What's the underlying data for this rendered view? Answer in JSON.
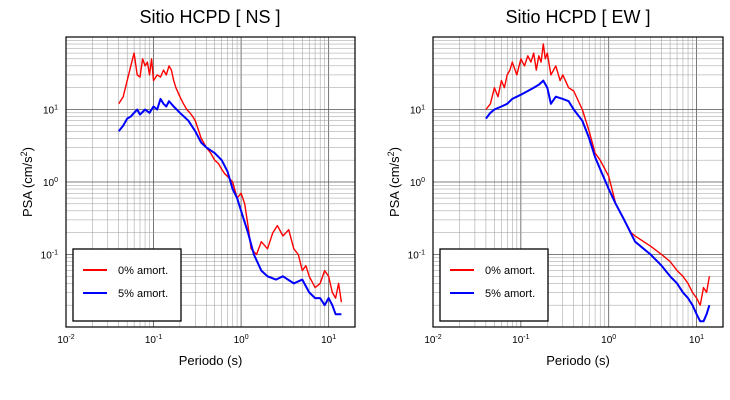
{
  "chart_data": [
    {
      "type": "line",
      "title": "Sitio HCPD [ NS ]",
      "xlabel": "Periodo (s)",
      "ylabel": "PSA (cm/s",
      "ylabel_sup": "2",
      "ylabel_suffix": ")",
      "x_scale": "log",
      "y_scale": "log",
      "xlim": [
        0.01,
        20
      ],
      "ylim": [
        0.01,
        100
      ],
      "grid": true,
      "legend_position": "bottom-left",
      "x_ticks": [
        {
          "base": "10",
          "exp": "-2"
        },
        {
          "base": "10",
          "exp": "-1"
        },
        {
          "base": "10",
          "exp": "0"
        },
        {
          "base": "10",
          "exp": "1"
        }
      ],
      "y_ticks": [
        {
          "base": "10",
          "exp": "-1"
        },
        {
          "base": "10",
          "exp": "0"
        },
        {
          "base": "10",
          "exp": "1"
        }
      ],
      "series": [
        {
          "name": "0% amort.",
          "color": "#ff0000",
          "x": [
            0.04,
            0.045,
            0.05,
            0.055,
            0.06,
            0.065,
            0.07,
            0.075,
            0.08,
            0.085,
            0.09,
            0.095,
            0.1,
            0.11,
            0.12,
            0.13,
            0.14,
            0.15,
            0.16,
            0.17,
            0.18,
            0.2,
            0.22,
            0.24,
            0.26,
            0.28,
            0.3,
            0.35,
            0.4,
            0.45,
            0.5,
            0.55,
            0.6,
            0.65,
            0.7,
            0.8,
            0.9,
            1.0,
            1.1,
            1.2,
            1.3,
            1.5,
            1.7,
            2.0,
            2.3,
            2.6,
            3.0,
            3.5,
            4.0,
            4.5,
            5.0,
            5.5,
            6.0,
            7.0,
            8.0,
            9.0,
            10.0,
            11.0,
            12.0,
            13.0,
            14.0
          ],
          "y": [
            12,
            15,
            25,
            40,
            60,
            30,
            28,
            50,
            40,
            45,
            30,
            50,
            25,
            30,
            28,
            35,
            30,
            40,
            35,
            25,
            20,
            15,
            12,
            10,
            9,
            8,
            7,
            4,
            3,
            2.5,
            2,
            1.8,
            1.5,
            1.3,
            1.2,
            1.0,
            0.6,
            0.7,
            0.5,
            0.25,
            0.12,
            0.1,
            0.15,
            0.12,
            0.2,
            0.25,
            0.18,
            0.22,
            0.12,
            0.1,
            0.06,
            0.07,
            0.05,
            0.035,
            0.04,
            0.06,
            0.05,
            0.03,
            0.025,
            0.04,
            0.022
          ]
        },
        {
          "name": "5% amort.",
          "color": "#0000ff",
          "x": [
            0.04,
            0.045,
            0.05,
            0.055,
            0.06,
            0.065,
            0.07,
            0.08,
            0.09,
            0.1,
            0.11,
            0.12,
            0.13,
            0.14,
            0.15,
            0.17,
            0.2,
            0.25,
            0.3,
            0.35,
            0.4,
            0.5,
            0.6,
            0.7,
            0.8,
            0.9,
            1.0,
            1.2,
            1.4,
            1.7,
            2.0,
            2.5,
            3.0,
            4.0,
            5.0,
            6.0,
            7.0,
            8.0,
            9.0,
            10.0,
            11.0,
            12.0,
            13.0,
            14.0
          ],
          "y": [
            5,
            6,
            7.5,
            8,
            9,
            10,
            8.5,
            10,
            9,
            11,
            10,
            14,
            12,
            11,
            13,
            11,
            9,
            7,
            5,
            3.5,
            3,
            2.5,
            2,
            1.4,
            0.8,
            0.6,
            0.4,
            0.2,
            0.1,
            0.06,
            0.05,
            0.045,
            0.05,
            0.04,
            0.045,
            0.03,
            0.025,
            0.025,
            0.02,
            0.025,
            0.02,
            0.015,
            0.015,
            0.015
          ]
        }
      ]
    },
    {
      "type": "line",
      "title": "Sitio HCPD [ EW ]",
      "xlabel": "Periodo (s)",
      "ylabel": "PSA (cm/s",
      "ylabel_sup": "2",
      "ylabel_suffix": ")",
      "x_scale": "log",
      "y_scale": "log",
      "xlim": [
        0.01,
        20
      ],
      "ylim": [
        0.01,
        100
      ],
      "grid": true,
      "legend_position": "bottom-left",
      "x_ticks": [
        {
          "base": "10",
          "exp": "-2"
        },
        {
          "base": "10",
          "exp": "-1"
        },
        {
          "base": "10",
          "exp": "0"
        },
        {
          "base": "10",
          "exp": "1"
        }
      ],
      "y_ticks": [
        {
          "base": "10",
          "exp": "-1"
        },
        {
          "base": "10",
          "exp": "0"
        },
        {
          "base": "10",
          "exp": "1"
        }
      ],
      "series": [
        {
          "name": "0% amort.",
          "color": "#ff0000",
          "x": [
            0.04,
            0.045,
            0.05,
            0.055,
            0.06,
            0.065,
            0.07,
            0.075,
            0.08,
            0.09,
            0.1,
            0.11,
            0.12,
            0.13,
            0.14,
            0.15,
            0.16,
            0.17,
            0.18,
            0.19,
            0.2,
            0.22,
            0.25,
            0.28,
            0.3,
            0.35,
            0.4,
            0.5,
            0.6,
            0.7,
            0.8,
            1.0,
            1.2,
            1.5,
            1.8,
            2.0,
            2.5,
            3.0,
            4.0,
            5.0,
            6.0,
            7.0,
            8.0,
            9.0,
            10.0,
            11.0,
            12.0,
            13.0,
            14.0
          ],
          "y": [
            10,
            12,
            20,
            15,
            25,
            20,
            30,
            35,
            45,
            30,
            50,
            40,
            55,
            45,
            60,
            35,
            55,
            45,
            80,
            50,
            60,
            30,
            40,
            25,
            30,
            20,
            18,
            10,
            5,
            2.5,
            2.0,
            1.2,
            0.5,
            0.3,
            0.2,
            0.18,
            0.15,
            0.13,
            0.1,
            0.08,
            0.06,
            0.05,
            0.04,
            0.03,
            0.025,
            0.02,
            0.035,
            0.03,
            0.05
          ]
        },
        {
          "name": "5% amort.",
          "color": "#0000ff",
          "x": [
            0.04,
            0.045,
            0.05,
            0.06,
            0.07,
            0.08,
            0.1,
            0.12,
            0.14,
            0.16,
            0.18,
            0.2,
            0.22,
            0.25,
            0.3,
            0.35,
            0.4,
            0.5,
            0.6,
            0.7,
            0.8,
            1.0,
            1.2,
            1.5,
            2.0,
            2.5,
            3.0,
            4.0,
            5.0,
            6.0,
            7.0,
            8.0,
            9.0,
            10.0,
            11.0,
            12.0,
            13.0,
            14.0
          ],
          "y": [
            7.5,
            9,
            10,
            11,
            12,
            14,
            16,
            18,
            20,
            22,
            25,
            20,
            12,
            15,
            14,
            13,
            10,
            7,
            4,
            2.2,
            1.5,
            0.8,
            0.5,
            0.3,
            0.15,
            0.12,
            0.1,
            0.07,
            0.05,
            0.04,
            0.03,
            0.025,
            0.02,
            0.015,
            0.012,
            0.012,
            0.015,
            0.02
          ]
        }
      ]
    }
  ]
}
